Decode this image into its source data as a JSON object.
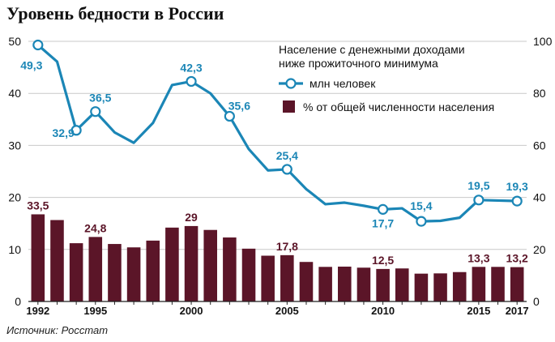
{
  "title": "Уровень бедности в России",
  "source": "Источник: Росстат",
  "colors": {
    "line": "#1b86b6",
    "bar": "#5b1528"
  },
  "chart_data": {
    "type": "bar+line",
    "title": "Уровень бедности в России",
    "legend_title": "Население с денежными доходами ниже прожиточного минимума",
    "legend_title_lines": [
      "Население с денежными доходами",
      "ниже прожиточного минимума"
    ],
    "legend_placement": "top-right",
    "x": [
      1992,
      1993,
      1994,
      1995,
      1996,
      1997,
      1998,
      1999,
      2000,
      2001,
      2002,
      2003,
      2004,
      2005,
      2006,
      2007,
      2008,
      2009,
      2010,
      2011,
      2012,
      2013,
      2014,
      2015,
      2016,
      2017
    ],
    "x_tick_labels": [
      "1992",
      "1995",
      "2000",
      "2005",
      "2010",
      "2015",
      "2017"
    ],
    "x_tick_values": [
      1992,
      1995,
      2000,
      2005,
      2010,
      2015,
      2017
    ],
    "y_left": {
      "min": 0,
      "max": 50,
      "ticks": [
        0,
        10,
        20,
        30,
        40,
        50
      ]
    },
    "y_right": {
      "min": 0,
      "max": 100,
      "ticks": [
        0,
        20,
        40,
        60,
        80,
        100
      ]
    },
    "grid": true,
    "series": [
      {
        "name": "млн человек",
        "kind": "line",
        "axis": "left",
        "values": [
          49.3,
          46.1,
          32.9,
          36.5,
          32.5,
          30.5,
          34.3,
          41.6,
          42.3,
          40.0,
          35.6,
          29.3,
          25.2,
          25.4,
          21.6,
          18.7,
          19.0,
          18.4,
          17.7,
          17.9,
          15.4,
          15.5,
          16.1,
          19.5,
          19.4,
          19.3
        ],
        "labels": [
          {
            "x": 1992,
            "text": "49,3"
          },
          {
            "x": 1994,
            "text": "32,9"
          },
          {
            "x": 1995,
            "text": "36,5"
          },
          {
            "x": 2000,
            "text": "42,3"
          },
          {
            "x": 2002,
            "text": "35,6"
          },
          {
            "x": 2005,
            "text": "25,4"
          },
          {
            "x": 2010,
            "text": "17,7"
          },
          {
            "x": 2012,
            "text": "15,4"
          },
          {
            "x": 2015,
            "text": "19,5"
          },
          {
            "x": 2017,
            "text": "19,3"
          }
        ]
      },
      {
        "name": "% от общей численности населения",
        "kind": "bar",
        "axis": "right",
        "values": [
          33.5,
          31.3,
          22.4,
          24.8,
          22.1,
          20.8,
          23.4,
          28.4,
          29.0,
          27.5,
          24.6,
          20.3,
          17.6,
          17.8,
          15.2,
          13.3,
          13.4,
          13.0,
          12.5,
          12.7,
          10.7,
          10.8,
          11.3,
          13.3,
          13.3,
          13.2
        ],
        "labels": [
          {
            "x": 1992,
            "text": "33,5"
          },
          {
            "x": 1995,
            "text": "24,8"
          },
          {
            "x": 2000,
            "text": "29"
          },
          {
            "x": 2005,
            "text": "17,8"
          },
          {
            "x": 2010,
            "text": "12,5"
          },
          {
            "x": 2015,
            "text": "13,3"
          },
          {
            "x": 2017,
            "text": "13,2"
          }
        ]
      }
    ]
  }
}
